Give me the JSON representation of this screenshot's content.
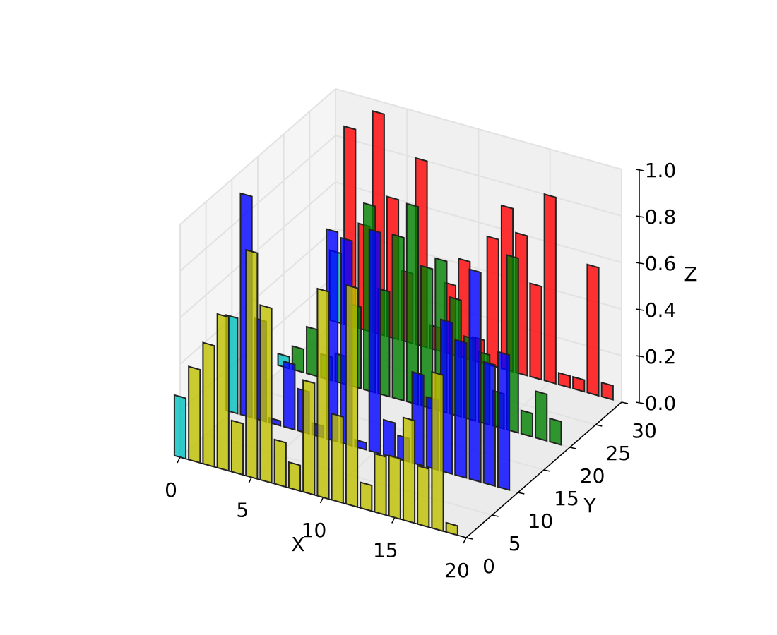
{
  "chart_data": {
    "type": "bar3d",
    "x_label": "X",
    "y_label": "Y",
    "z_label": "Z",
    "xlim": [
      0,
      20
    ],
    "ylim": [
      0,
      30
    ],
    "zlim": [
      0,
      1
    ],
    "xticks": [
      0,
      5,
      10,
      15,
      20
    ],
    "yticks": [
      0,
      5,
      10,
      15,
      20,
      25,
      30
    ],
    "zticks": [
      {
        "value": 0,
        "label": "0.0"
      },
      {
        "value": 0.2,
        "label": "0.2"
      },
      {
        "value": 0.4,
        "label": "0.4"
      },
      {
        "value": 0.6,
        "label": "0.6"
      },
      {
        "value": 0.8,
        "label": "0.8"
      },
      {
        "value": 1,
        "label": "1.0"
      }
    ],
    "grid": true,
    "first_bar_color": "#00bfbf",
    "series": [
      {
        "y": 30,
        "color": "#ff0000",
        "values": [
          0.3,
          0.85,
          0.45,
          0.95,
          0.6,
          0.3,
          0.8,
          0.1,
          0.3,
          0.42,
          0.1,
          0.55,
          0.7,
          0.6,
          0.4,
          0.8,
          0.05,
          0.05,
          0.55,
          0.06
        ]
      },
      {
        "y": 20,
        "color": "#008000",
        "values": [
          0.05,
          0.1,
          0.2,
          0.1,
          0.12,
          0.35,
          0.8,
          0.45,
          0.7,
          0.85,
          0.6,
          0.65,
          0.5,
          0.35,
          0.3,
          0.15,
          0.75,
          0.1,
          0.2,
          0.1
        ]
      },
      {
        "y": 10,
        "color": "#0000ff",
        "values": [
          0.41,
          0.95,
          0.43,
          0.02,
          0.28,
          0.18,
          0.05,
          0.9,
          0.88,
          0.03,
          0.95,
          0.15,
          0.1,
          0.39,
          0.3,
          0.65,
          0.58,
          0.9,
          0.52,
          0.58
        ]
      },
      {
        "y": 0,
        "color": "#bfbf00",
        "values": [
          0.26,
          0.4,
          0.52,
          0.66,
          0.22,
          0.97,
          0.75,
          0.19,
          0.11,
          0.48,
          0.89,
          0.37,
          0.94,
          0.11,
          0.25,
          0.26,
          0.44,
          0.25,
          0.67,
          0.04
        ]
      }
    ]
  }
}
